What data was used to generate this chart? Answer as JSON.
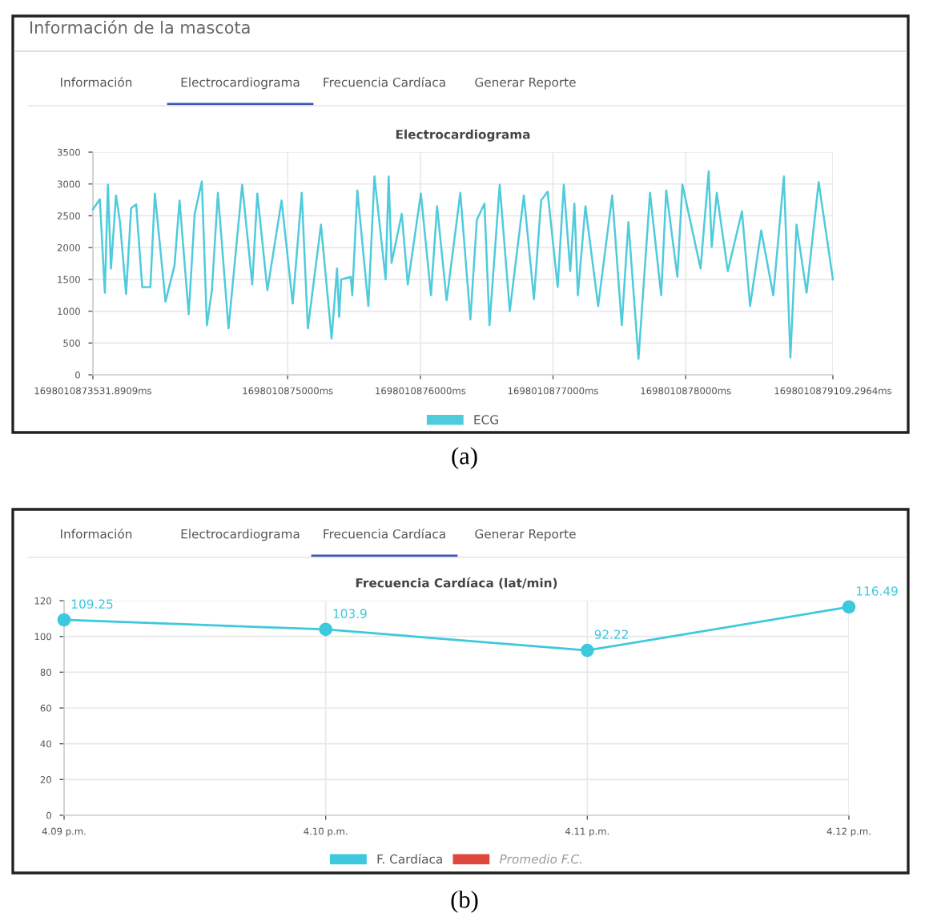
{
  "chart_data": [
    {
      "type": "line",
      "title": "Electrocardiograma",
      "annotations": [
        "Información de la mascota",
        "Información",
        "Electrocardiograma",
        "Frecuencia Cardíaca",
        "Generar Reporte",
        "(a)"
      ],
      "xlim": [
        1698010873531.8909,
        1698010879109.2964
      ],
      "xticks": [
        {
          "value": 1698010873531.8909,
          "label": "1698010873531.8909ms"
        },
        {
          "value": 1698010875000,
          "label": "1698010875000ms"
        },
        {
          "value": 1698010876000,
          "label": "1698010876000ms"
        },
        {
          "value": 1698010877000,
          "label": "1698010877000ms"
        },
        {
          "value": 1698010878000,
          "label": "1698010878000ms"
        },
        {
          "value": 1698010879109.2964,
          "label": "1698010879109.2964ms"
        }
      ],
      "ylim": [
        0,
        3500
      ],
      "yticks": [
        0,
        500,
        1000,
        1500,
        2000,
        2500,
        3000,
        3500
      ],
      "grid": true,
      "legend": "bottom",
      "marker": "none",
      "line_style": "solid",
      "series": [
        {
          "name": "ECG",
          "color": "#4fcbdb",
          "x": [
            1698010873531.8909,
            1698010873584,
            1698010873622,
            1698010873645,
            1698010873668,
            1698010873706,
            1698010873736,
            1698010873782,
            1698010873820,
            1698010873858,
            1698010873904,
            1698010873965,
            1698010873999,
            1698010874079,
            1698010874147,
            1698010874185,
            1698010874254,
            1698010874299,
            1698010874353,
            1698010874391,
            1698010874429,
            1698010874474,
            1698010874554,
            1698010874657,
            1698010874733,
            1698010874771,
            1698010874847,
            1698010874954,
            1698010875038,
            1698010875106,
            1698010875152,
            1698010875251,
            1698010875331,
            1698010875372,
            1698010875388,
            1698010875403,
            1698010875475,
            1698010875487,
            1698010875525,
            1698010875608,
            1698010875654,
            1698010875738,
            1698010875761,
            1698010875783,
            1698010875860,
            1698010875905,
            1698010876004,
            1698010876080,
            1698010876126,
            1698010876198,
            1698010876301,
            1698010876377,
            1698010876426,
            1698010876483,
            1698010876521,
            1698010876598,
            1698010876674,
            1698010876780,
            1698010876856,
            1698010876910,
            1698010876959,
            1698010877035,
            1698010877081,
            1698010877130,
            1698010877161,
            1698010877187,
            1698010877244,
            1698010877340,
            1698010877446,
            1698010877518,
            1698010877568,
            1698010877644,
            1698010877731,
            1698010877815,
            1698010877853,
            1698010877937,
            1698010877975,
            1698010878112,
            1698010878173,
            1698010878196,
            1698010878234,
            1698010878317,
            1698010878424,
            1698010878485,
            1698010878569,
            1698010878660,
            1698010878740,
            1698010878789,
            1698010878835,
            1698010878911,
            1698010879002,
            1698010879109.2964
          ],
          "values": [
            2600,
            2760,
            1290,
            2990,
            1670,
            2820,
            2400,
            1270,
            2620,
            2680,
            1380,
            1380,
            2850,
            1150,
            1720,
            2740,
            950,
            2530,
            3040,
            780,
            1330,
            2860,
            730,
            2990,
            1420,
            2850,
            1330,
            2740,
            1120,
            2860,
            730,
            2360,
            570,
            1670,
            910,
            1500,
            1540,
            1250,
            2900,
            1080,
            3120,
            1500,
            3120,
            1760,
            2530,
            1420,
            2850,
            1250,
            2650,
            1170,
            2860,
            870,
            2440,
            2690,
            780,
            2990,
            1000,
            2820,
            1190,
            2740,
            2880,
            1380,
            2990,
            1630,
            2690,
            1250,
            2650,
            1080,
            2820,
            780,
            2400,
            250,
            2860,
            1250,
            2900,
            1540,
            2990,
            1670,
            3200,
            2010,
            2860,
            1630,
            2570,
            1080,
            2270,
            1250,
            3120,
            270,
            2360,
            1290,
            3030,
            1500
          ]
        }
      ]
    },
    {
      "type": "line",
      "title": "Frecuencia Cardíaca (lat/min)",
      "annotations": [
        "Información",
        "Electrocardiograma",
        "Frecuencia Cardíaca",
        "Generar Reporte",
        "(b)"
      ],
      "categories": [
        "4.09 p.m.",
        "4.10 p.m.",
        "4.11 p.m.",
        "4.12 p.m."
      ],
      "ylim": [
        0,
        120
      ],
      "yticks": [
        0,
        20,
        40,
        60,
        80,
        100,
        120
      ],
      "grid": true,
      "legend": "bottom",
      "marker": "circle",
      "line_style": "solid",
      "data_labels": true,
      "series": [
        {
          "name": "F. Cardíaca",
          "color": "#3dc9dd",
          "values": [
            109.25,
            103.9,
            92.22,
            116.49
          ]
        },
        {
          "name": "Promedio F.C.",
          "color": "#e0473c",
          "values": [
            null,
            null,
            null,
            null
          ]
        }
      ]
    }
  ]
}
